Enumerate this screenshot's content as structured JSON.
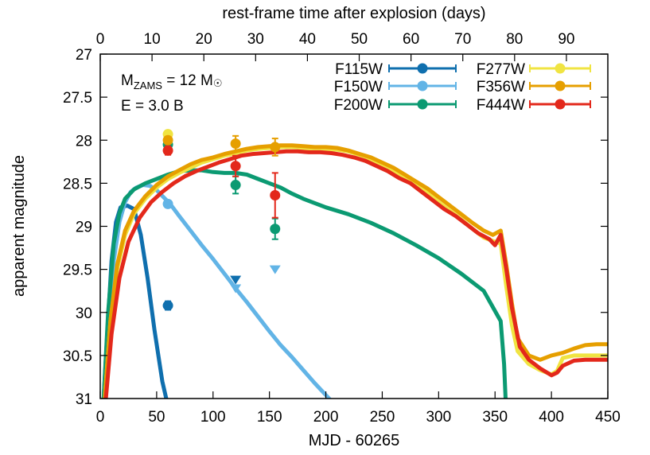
{
  "chart_data": {
    "type": "line",
    "xlabel": "MJD - 60265",
    "x2label": "rest-frame time after explosion (days)",
    "ylabel": "apparent magnitude",
    "xlim": [
      0,
      450
    ],
    "ylim": [
      27,
      31
    ],
    "y_inverted": true,
    "x2lim": [
      0,
      98
    ],
    "xticks": [
      0,
      50,
      100,
      150,
      200,
      250,
      300,
      350,
      400,
      450
    ],
    "x2ticks": [
      0,
      10,
      20,
      30,
      40,
      50,
      60,
      70,
      80,
      90
    ],
    "yticks": [
      27,
      27.5,
      28,
      28.5,
      29,
      29.5,
      30,
      30.5,
      31
    ],
    "xtick_labels": [
      "0",
      "50",
      "100",
      "150",
      "200",
      "250",
      "300",
      "350",
      "400",
      "450"
    ],
    "x2tick_labels": [
      "0",
      "10",
      "20",
      "30",
      "40",
      "50",
      "60",
      "70",
      "80",
      "90"
    ],
    "ytick_labels": [
      "27",
      "27.5",
      "28",
      "28.5",
      "29",
      "29.5",
      "30",
      "30.5",
      "31"
    ],
    "grid": false,
    "legend_position": "top-right",
    "annotation": {
      "line1_prefix": "M",
      "line1_sub": "ZAMS",
      "line1_mid": " = 12 M",
      "line1_symbol": "☉",
      "line2": "E = 3.0 B"
    },
    "series": [
      {
        "name": "F115W",
        "color": "#0f6fae",
        "model": [
          [
            0,
            31.5
          ],
          [
            3,
            31
          ],
          [
            6,
            30.3
          ],
          [
            10,
            29.4
          ],
          [
            14,
            28.95
          ],
          [
            18,
            28.78
          ],
          [
            24,
            28.76
          ],
          [
            30,
            28.8
          ],
          [
            36,
            29.1
          ],
          [
            42,
            29.6
          ],
          [
            48,
            30.2
          ],
          [
            55,
            30.8
          ],
          [
            62,
            31.2
          ]
        ],
        "points": [
          {
            "x": 60,
            "y": 29.92,
            "err": 0.05
          }
        ],
        "upper_limits": [
          {
            "x": 120,
            "y": 29.62
          }
        ]
      },
      {
        "name": "F150W",
        "color": "#62b4e6",
        "model": [
          [
            0,
            31.5
          ],
          [
            3,
            31
          ],
          [
            7,
            30.2
          ],
          [
            12,
            29.4
          ],
          [
            17,
            28.95
          ],
          [
            22,
            28.72
          ],
          [
            27,
            28.6
          ],
          [
            32,
            28.55
          ],
          [
            38,
            28.52
          ],
          [
            44,
            28.53
          ],
          [
            50,
            28.58
          ],
          [
            56,
            28.66
          ],
          [
            62,
            28.74
          ],
          [
            70,
            28.88
          ],
          [
            80,
            29.05
          ],
          [
            90,
            29.22
          ],
          [
            100,
            29.38
          ],
          [
            110,
            29.55
          ],
          [
            120,
            29.72
          ],
          [
            130,
            29.88
          ],
          [
            140,
            30.05
          ],
          [
            150,
            30.22
          ],
          [
            160,
            30.38
          ],
          [
            170,
            30.52
          ],
          [
            180,
            30.67
          ],
          [
            190,
            30.82
          ],
          [
            200,
            30.96
          ],
          [
            210,
            31.1
          ]
        ],
        "points": [
          {
            "x": 60,
            "y": 28.74,
            "err": 0.04
          }
        ],
        "upper_limits": [
          {
            "x": 120,
            "y": 29.72
          },
          {
            "x": 155,
            "y": 29.5
          }
        ]
      },
      {
        "name": "F200W",
        "color": "#0b9a72",
        "model": [
          [
            0,
            31.5
          ],
          [
            3,
            31
          ],
          [
            7,
            30.0
          ],
          [
            12,
            29.2
          ],
          [
            17,
            28.85
          ],
          [
            22,
            28.68
          ],
          [
            30,
            28.57
          ],
          [
            40,
            28.5
          ],
          [
            50,
            28.45
          ],
          [
            60,
            28.4
          ],
          [
            70,
            28.36
          ],
          [
            80,
            28.35
          ],
          [
            90,
            28.35
          ],
          [
            100,
            28.37
          ],
          [
            110,
            28.38
          ],
          [
            120,
            28.38
          ],
          [
            130,
            28.4
          ],
          [
            140,
            28.45
          ],
          [
            150,
            28.5
          ],
          [
            160,
            28.55
          ],
          [
            170,
            28.62
          ],
          [
            180,
            28.68
          ],
          [
            190,
            28.73
          ],
          [
            200,
            28.78
          ],
          [
            220,
            28.86
          ],
          [
            240,
            28.96
          ],
          [
            260,
            29.08
          ],
          [
            280,
            29.22
          ],
          [
            300,
            29.37
          ],
          [
            320,
            29.55
          ],
          [
            340,
            29.75
          ],
          [
            355,
            30.1
          ],
          [
            358,
            30.6
          ],
          [
            360,
            31.2
          ]
        ],
        "points": [
          {
            "x": 60,
            "y": 28.05,
            "err": 0.04
          },
          {
            "x": 120,
            "y": 28.52,
            "err": 0.1
          },
          {
            "x": 155,
            "y": 29.03,
            "err": 0.12
          }
        ],
        "upper_limits": []
      },
      {
        "name": "F277W",
        "color": "#f0e442",
        "model": [
          [
            0,
            31.5
          ],
          [
            4,
            31
          ],
          [
            9,
            30.1
          ],
          [
            15,
            29.5
          ],
          [
            22,
            29.1
          ],
          [
            30,
            28.85
          ],
          [
            40,
            28.68
          ],
          [
            50,
            28.55
          ],
          [
            60,
            28.45
          ],
          [
            70,
            28.38
          ],
          [
            80,
            28.32
          ],
          [
            90,
            28.26
          ],
          [
            100,
            28.22
          ],
          [
            110,
            28.18
          ],
          [
            120,
            28.15
          ],
          [
            130,
            28.12
          ],
          [
            140,
            28.1
          ],
          [
            150,
            28.09
          ],
          [
            160,
            28.08
          ],
          [
            170,
            28.08
          ],
          [
            180,
            28.09
          ],
          [
            190,
            28.1
          ],
          [
            200,
            28.1
          ],
          [
            210,
            28.11
          ],
          [
            220,
            28.13
          ],
          [
            230,
            28.17
          ],
          [
            240,
            28.22
          ],
          [
            250,
            28.28
          ],
          [
            260,
            28.35
          ],
          [
            270,
            28.43
          ],
          [
            280,
            28.5
          ],
          [
            290,
            28.6
          ],
          [
            300,
            28.72
          ],
          [
            310,
            28.82
          ],
          [
            320,
            28.92
          ],
          [
            330,
            29.03
          ],
          [
            340,
            29.13
          ],
          [
            348,
            29.17
          ],
          [
            355,
            29.2
          ],
          [
            360,
            29.7
          ],
          [
            365,
            30.15
          ],
          [
            370,
            30.45
          ],
          [
            380,
            30.6
          ],
          [
            390,
            30.67
          ],
          [
            400,
            30.72
          ],
          [
            405,
            30.68
          ],
          [
            410,
            30.53
          ],
          [
            420,
            30.5
          ],
          [
            430,
            30.5
          ],
          [
            440,
            30.5
          ],
          [
            450,
            30.5
          ]
        ],
        "points": [
          {
            "x": 60,
            "y": 27.93,
            "err": 0.04
          }
        ],
        "upper_limits": []
      },
      {
        "name": "F356W",
        "color": "#e69f00",
        "model": [
          [
            0,
            31.5
          ],
          [
            4,
            31
          ],
          [
            9,
            30.1
          ],
          [
            15,
            29.45
          ],
          [
            22,
            29.05
          ],
          [
            30,
            28.82
          ],
          [
            40,
            28.65
          ],
          [
            50,
            28.52
          ],
          [
            60,
            28.42
          ],
          [
            70,
            28.35
          ],
          [
            80,
            28.28
          ],
          [
            90,
            28.23
          ],
          [
            100,
            28.2
          ],
          [
            110,
            28.16
          ],
          [
            120,
            28.13
          ],
          [
            130,
            28.1
          ],
          [
            140,
            28.08
          ],
          [
            150,
            28.07
          ],
          [
            160,
            28.06
          ],
          [
            170,
            28.06
          ],
          [
            180,
            28.07
          ],
          [
            190,
            28.08
          ],
          [
            200,
            28.08
          ],
          [
            210,
            28.09
          ],
          [
            220,
            28.12
          ],
          [
            230,
            28.16
          ],
          [
            240,
            28.2
          ],
          [
            250,
            28.26
          ],
          [
            260,
            28.32
          ],
          [
            270,
            28.4
          ],
          [
            280,
            28.48
          ],
          [
            290,
            28.56
          ],
          [
            300,
            28.66
          ],
          [
            310,
            28.76
          ],
          [
            320,
            28.86
          ],
          [
            330,
            28.96
          ],
          [
            340,
            29.05
          ],
          [
            348,
            29.1
          ],
          [
            355,
            29.05
          ],
          [
            360,
            29.45
          ],
          [
            365,
            29.9
          ],
          [
            370,
            30.3
          ],
          [
            380,
            30.5
          ],
          [
            390,
            30.55
          ],
          [
            400,
            30.5
          ],
          [
            410,
            30.47
          ],
          [
            420,
            30.42
          ],
          [
            430,
            30.38
          ],
          [
            440,
            30.37
          ],
          [
            450,
            30.37
          ]
        ],
        "points": [
          {
            "x": 60,
            "y": 28.0,
            "err": 0.04
          },
          {
            "x": 120,
            "y": 28.04,
            "err": 0.09
          },
          {
            "x": 155,
            "y": 28.08,
            "err": 0.1
          }
        ],
        "upper_limits": []
      },
      {
        "name": "F444W",
        "color": "#e3281b",
        "model": [
          [
            0,
            31.5
          ],
          [
            5,
            31
          ],
          [
            10,
            30.25
          ],
          [
            17,
            29.6
          ],
          [
            25,
            29.18
          ],
          [
            35,
            28.9
          ],
          [
            45,
            28.72
          ],
          [
            55,
            28.6
          ],
          [
            65,
            28.5
          ],
          [
            75,
            28.42
          ],
          [
            85,
            28.36
          ],
          [
            95,
            28.31
          ],
          [
            105,
            28.26
          ],
          [
            115,
            28.22
          ],
          [
            125,
            28.18
          ],
          [
            135,
            28.16
          ],
          [
            145,
            28.15
          ],
          [
            155,
            28.14
          ],
          [
            165,
            28.13
          ],
          [
            175,
            28.13
          ],
          [
            185,
            28.14
          ],
          [
            195,
            28.14
          ],
          [
            205,
            28.15
          ],
          [
            215,
            28.17
          ],
          [
            225,
            28.2
          ],
          [
            235,
            28.24
          ],
          [
            245,
            28.3
          ],
          [
            255,
            28.36
          ],
          [
            265,
            28.44
          ],
          [
            275,
            28.5
          ],
          [
            285,
            28.6
          ],
          [
            295,
            28.7
          ],
          [
            305,
            28.8
          ],
          [
            315,
            28.88
          ],
          [
            325,
            28.98
          ],
          [
            335,
            29.08
          ],
          [
            345,
            29.15
          ],
          [
            350,
            29.22
          ],
          [
            355,
            29.1
          ],
          [
            360,
            29.5
          ],
          [
            365,
            29.95
          ],
          [
            372,
            30.4
          ],
          [
            380,
            30.55
          ],
          [
            390,
            30.65
          ],
          [
            400,
            30.73
          ],
          [
            405,
            30.7
          ],
          [
            410,
            30.62
          ],
          [
            420,
            30.56
          ],
          [
            430,
            30.55
          ],
          [
            440,
            30.55
          ],
          [
            450,
            30.55
          ]
        ],
        "points": [
          {
            "x": 60,
            "y": 28.12,
            "err": 0.05
          },
          {
            "x": 120,
            "y": 28.3,
            "err": 0.12
          },
          {
            "x": 155,
            "y": 28.64,
            "err": 0.26
          }
        ],
        "upper_limits": []
      }
    ]
  }
}
